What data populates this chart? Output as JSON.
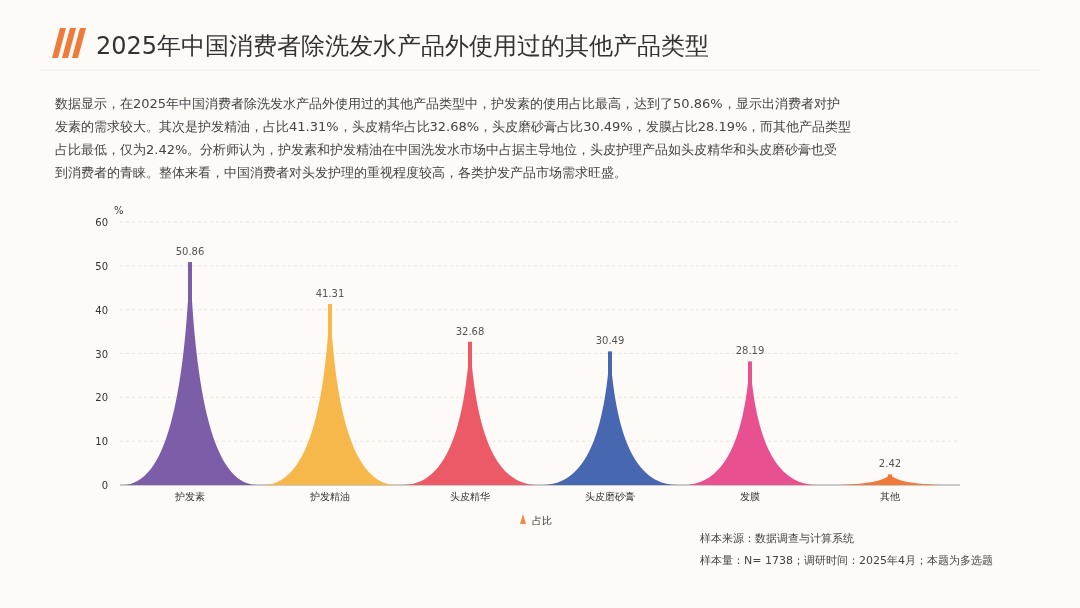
{
  "chart_data": {
    "type": "bar",
    "title": "2025年中国消费者除洗发水产品外使用过的其他产品类型",
    "ylabel": "%",
    "categories": [
      "护发素",
      "护发精油",
      "头皮精华",
      "头皮磨砂膏",
      "发膜",
      "其他"
    ],
    "series": [
      {
        "name": "占比",
        "color": "#ee8a45",
        "colors": [
          "#7b5ea7",
          "#f6b84b",
          "#ec5a68",
          "#4767b0",
          "#e8508f",
          "#ef7a3a"
        ],
        "values": [
          50.86,
          41.31,
          32.68,
          30.49,
          28.19,
          2.42
        ]
      }
    ],
    "ylim": [
      0,
      60
    ],
    "yticks": [
      0,
      10,
      20,
      30,
      40,
      50,
      60
    ],
    "grid": "y",
    "legend": "bottom",
    "data_labels": true,
    "annotations": [
      "数据显示，在2025年中国消费者除洗发水产品外使用过的其他产品类型中，护发素的使用占比最高，达到了50.86%，显示出消费者对护发素的需求较大。其次是护发精油，占比41.31%，头皮精华占比32.68%，头皮磨砂膏占比30.49%，发膜占比28.19%，而其他产品类型占比最低，仅为2.42%。分析师认为，护发素和护发精油在中国洗发水市场中占据主导地位，头皮护理产品如头皮精华和头皮磨砂膏也受到消费者的青睐。整体来看，中国消费者对头发护理的重视程度较高，各类护发产品市场需求旺盛。",
      "样本来源：数据调查与计算系统",
      "样本量：N= 1738；调研时间：2025年4月；本题为多选题"
    ]
  }
}
